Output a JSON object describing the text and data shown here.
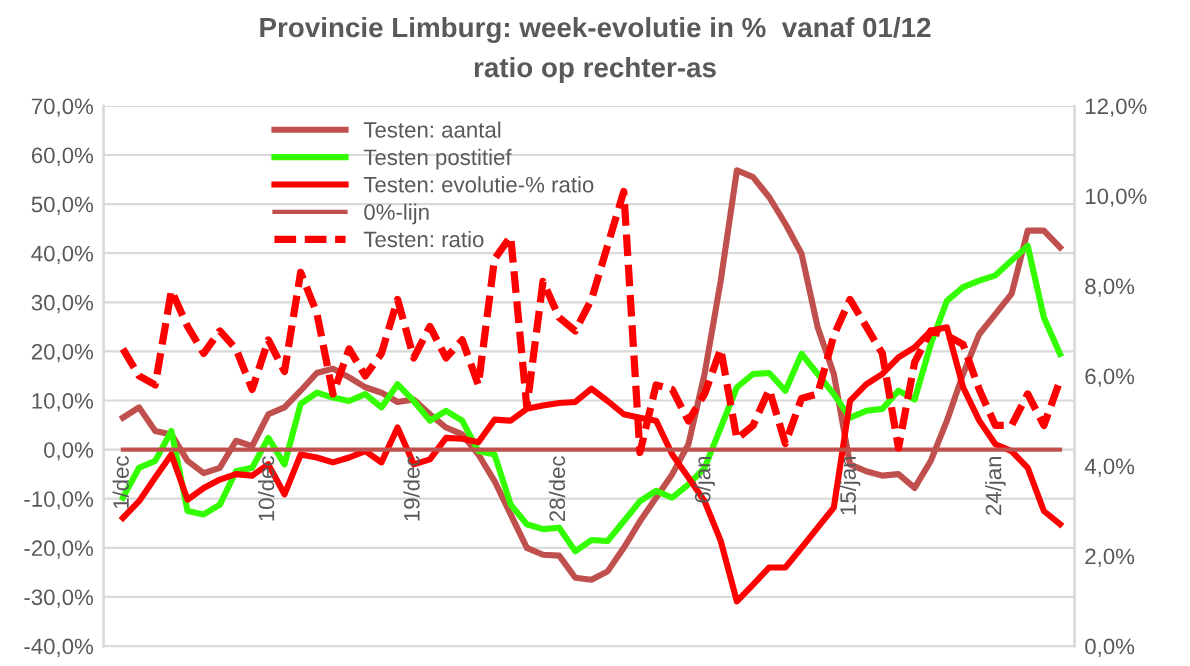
{
  "chart_data": {
    "type": "line",
    "title": "Provincie Limburg: week-evolutie in %  vanaf 01/12",
    "subtitle": "ratio op rechter-as",
    "categories": [
      "1/dec",
      null,
      null,
      null,
      null,
      null,
      null,
      null,
      null,
      "10/dec",
      null,
      null,
      null,
      null,
      null,
      null,
      null,
      null,
      "19/dec",
      null,
      null,
      null,
      null,
      null,
      null,
      null,
      null,
      "28/dec",
      null,
      null,
      null,
      null,
      null,
      null,
      null,
      null,
      "6/jan",
      null,
      null,
      null,
      null,
      null,
      null,
      null,
      null,
      "15/jan",
      null,
      null,
      null,
      null,
      null,
      null,
      null,
      null,
      "24/jan",
      null,
      null,
      null,
      null
    ],
    "series": [
      {
        "name": "Testen: aantal",
        "color": "#c0504d",
        "values": [
          6.5,
          8.6,
          3.8,
          3.1,
          -2.3,
          -4.8,
          -3.7,
          1.8,
          0.7,
          7.2,
          8.6,
          12,
          15.6,
          16.5,
          14.7,
          12.7,
          11.6,
          9.7,
          10.2,
          7.2,
          4.5,
          3.1,
          -1,
          -6.4,
          -13.2,
          -20,
          -21.4,
          -21.6,
          -26.1,
          -26.5,
          -24.8,
          -20,
          -14.6,
          -9.8,
          -5,
          1.1,
          15.4,
          34.4,
          56.9,
          55.5,
          51.4,
          46,
          39.9,
          24.9,
          15.4,
          -3,
          -4.4,
          -5.3,
          -5,
          -7.8,
          -2.3,
          5.9,
          15.4,
          23.5,
          27.6,
          31.7,
          44.6,
          44.6,
          41.2
        ]
      },
      {
        "name": "Testen postitief",
        "color": "#33ff00",
        "values": [
          -9.8,
          -3.7,
          -2.3,
          3.8,
          -12.5,
          -13.2,
          -11.2,
          -4.4,
          -3.7,
          2.4,
          -3,
          9.3,
          11.6,
          10.6,
          9.9,
          11.3,
          8.6,
          13.3,
          9.9,
          5.9,
          7.9,
          5.9,
          -0.3,
          -1,
          -11.2,
          -15.2,
          -16.2,
          -15.9,
          -20.7,
          -18.4,
          -18.6,
          -14.6,
          -10.5,
          -8.4,
          -9.8,
          -7.1,
          -3.7,
          4.5,
          12.7,
          15.4,
          15.6,
          12,
          19.5,
          15.4,
          11.3,
          6.5,
          7.9,
          8.3,
          12,
          10.2,
          21.5,
          30.3,
          33.1,
          34.4,
          35.5,
          38.5,
          41.5,
          26.9,
          19.5
        ]
      },
      {
        "name": "Testen: evolutie-% ratio",
        "color": "#ff0000",
        "values": [
          -13.9,
          -10.5,
          -5.7,
          -1,
          -10.2,
          -7.8,
          -6.1,
          -5,
          -5.3,
          -3,
          -9.1,
          -1,
          -1.6,
          -2.6,
          -1.6,
          -0.3,
          -2.6,
          4.5,
          -3,
          -2,
          2.4,
          2.2,
          1.5,
          6.1,
          5.9,
          8.3,
          9,
          9.5,
          9.7,
          12.4,
          9.9,
          7.2,
          6.5,
          5.9,
          -1,
          -5.7,
          -10.5,
          -18.6,
          -30.9,
          -27.5,
          -24,
          -24,
          -20,
          -15.9,
          -11.8,
          9.9,
          13.3,
          15.4,
          18.8,
          20.8,
          24.2,
          24.9,
          12.7,
          5.9,
          1.1,
          -0.3,
          -3.7,
          -12.5,
          -15.2
        ]
      },
      {
        "name": "0%-lijn",
        "color": "#c0504d",
        "values": [
          0,
          0,
          0,
          0,
          0,
          0,
          0,
          0,
          0,
          0,
          0,
          0,
          0,
          0,
          0,
          0,
          0,
          0,
          0,
          0,
          0,
          0,
          0,
          0,
          0,
          0,
          0,
          0,
          0,
          0,
          0,
          0,
          0,
          0,
          0,
          0,
          0,
          0,
          0,
          0,
          0,
          0,
          0,
          0,
          0,
          0,
          0,
          0,
          0,
          0,
          0,
          0,
          0,
          0,
          0,
          0,
          0,
          0,
          0
        ]
      },
      {
        "name": "Testen: ratio",
        "color": "#ff0000",
        "axis": "y2",
        "line_style": "dashed",
        "values": [
          6.6,
          6.0,
          5.8,
          7.9,
          7.1,
          6.5,
          7.0,
          6.6,
          5.7,
          6.8,
          6.1,
          8.3,
          7.4,
          5.6,
          6.6,
          6.0,
          6.5,
          7.7,
          6.4,
          7.1,
          6.4,
          6.8,
          5.8,
          8.6,
          9.1,
          5.3,
          8.1,
          7.3,
          7.0,
          7.7,
          8.9,
          10.1,
          4.3,
          5.8,
          5.7,
          5.0,
          5.6,
          6.6,
          4.6,
          4.9,
          5.7,
          4.5,
          5.5,
          5.6,
          6.9,
          7.7,
          7.1,
          6.5,
          4.4,
          6.3,
          7.0,
          6.9,
          6.7,
          5.7,
          4.9,
          4.9,
          5.6,
          4.9,
          5.9
        ]
      }
    ],
    "ylim": [
      -40,
      70
    ],
    "yticks": [
      {
        "value": -40,
        "label": "-40,0%"
      },
      {
        "value": -30,
        "label": "-30,0%"
      },
      {
        "value": -20,
        "label": "-20,0%"
      },
      {
        "value": -10,
        "label": "-10,0%"
      },
      {
        "value": 0,
        "label": "0,0%"
      },
      {
        "value": 10,
        "label": "10,0%"
      },
      {
        "value": 20,
        "label": "20,0%"
      },
      {
        "value": 30,
        "label": "30,0%"
      },
      {
        "value": 40,
        "label": "40,0%"
      },
      {
        "value": 50,
        "label": "50,0%"
      },
      {
        "value": 60,
        "label": "60,0%"
      },
      {
        "value": 70,
        "label": "70,0%"
      }
    ],
    "y2lim": [
      0,
      12
    ],
    "y2ticks": [
      {
        "value": 0,
        "label": "0,0%"
      },
      {
        "value": 2,
        "label": "2,0%"
      },
      {
        "value": 4,
        "label": "4,0%"
      },
      {
        "value": 6,
        "label": "6,0%"
      },
      {
        "value": 8,
        "label": "8,0%"
      },
      {
        "value": 10,
        "label": "10,0%"
      },
      {
        "value": 12,
        "label": "12,0%"
      }
    ],
    "grid": "y",
    "legend": "top left",
    "marker": "none"
  }
}
